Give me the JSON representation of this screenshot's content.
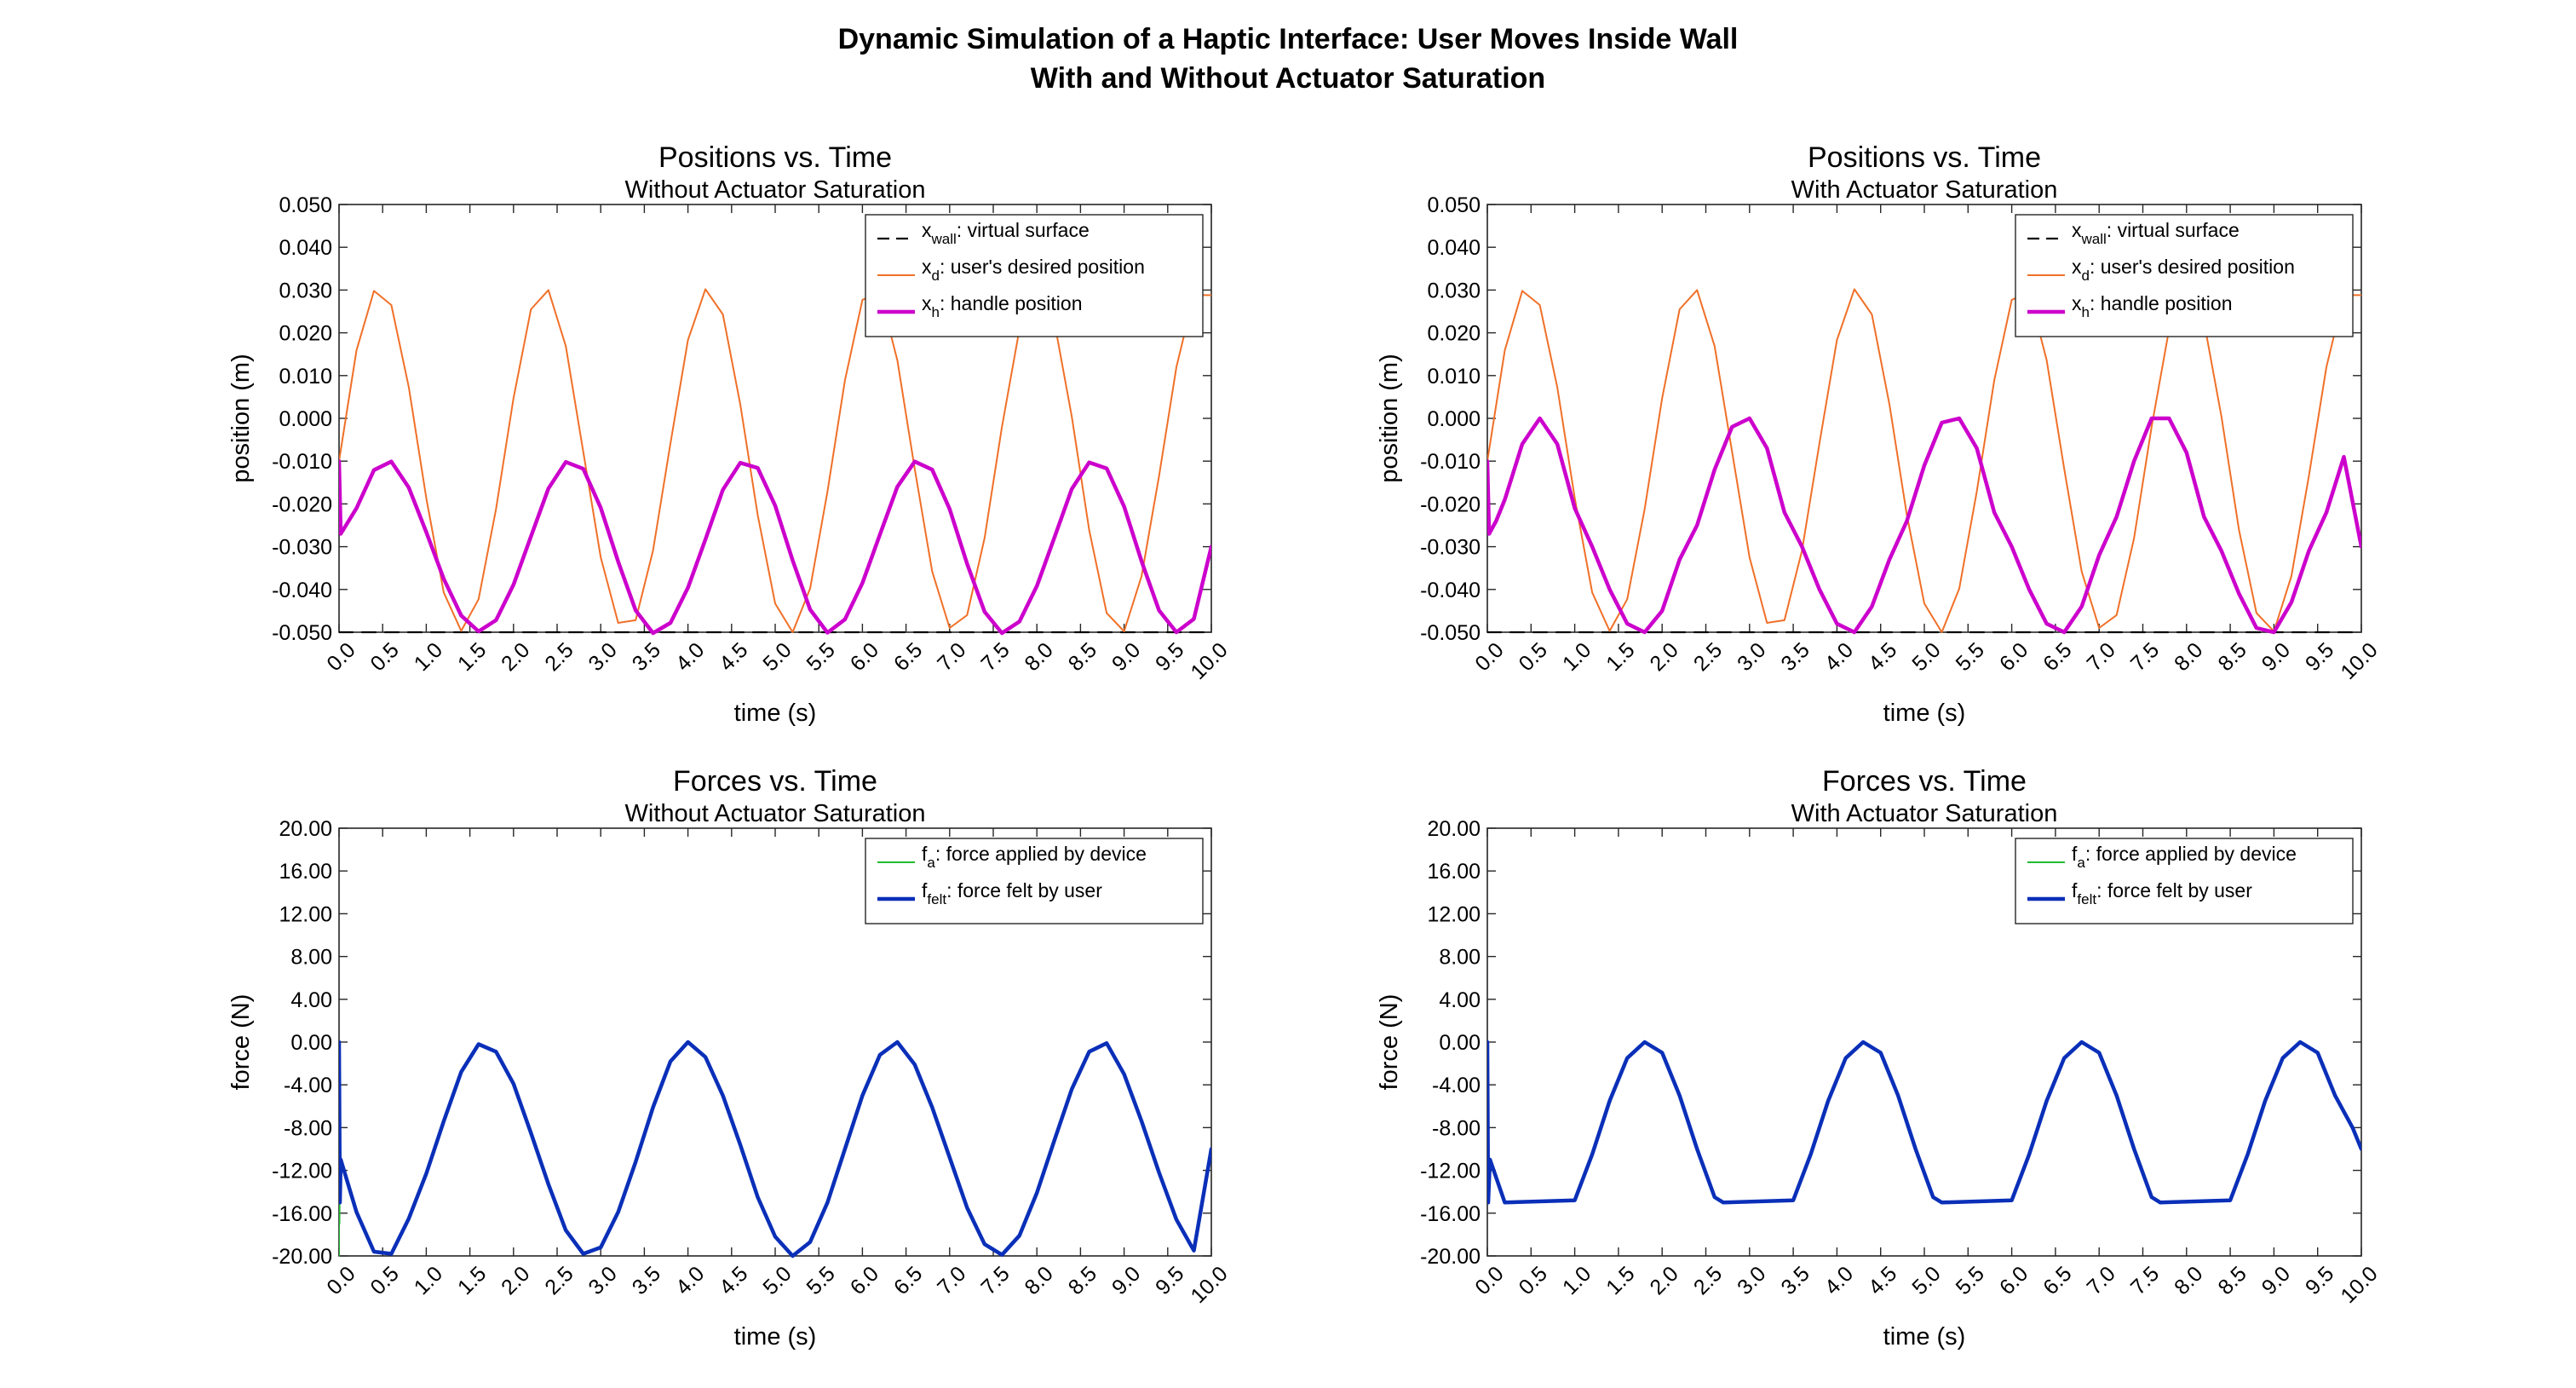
{
  "figure": {
    "suptitle_line1": "Dynamic Simulation of a Haptic Interface: User Moves Inside Wall",
    "suptitle_line2": "With and Without Actuator Saturation"
  },
  "chart_data": [
    {
      "type": "line",
      "title": "Positions vs. Time",
      "subtitle": "Without Actuator Saturation",
      "xlabel": "time (s)",
      "ylabel": "position (m)",
      "xlim": [
        0,
        10
      ],
      "ylim": [
        -0.05,
        0.05
      ],
      "x_ticks": [
        "0.0",
        "0.5",
        "1.0",
        "1.5",
        "2.0",
        "2.5",
        "3.0",
        "3.5",
        "4.0",
        "4.5",
        "5.0",
        "5.5",
        "6.0",
        "6.5",
        "7.0",
        "7.5",
        "8.0",
        "8.5",
        "9.0",
        "9.5",
        "10.0"
      ],
      "y_ticks": [
        "0.050",
        "0.040",
        "0.030",
        "0.020",
        "0.010",
        "0.000",
        "-0.010",
        "-0.020",
        "-0.030",
        "-0.040",
        "-0.050"
      ],
      "grid": false,
      "legend_position": "top-right",
      "series": [
        {
          "name": "x_wall: virtual surface",
          "legend_main": "x",
          "legend_sub": "wall",
          "legend_rest": ": virtual surface",
          "color": "#000000",
          "style": "dashed",
          "x": [
            0,
            10
          ],
          "values": [
            -0.05,
            -0.05
          ]
        },
        {
          "name": "x_d: user's desired position",
          "legend_main": "x",
          "legend_sub": "d",
          "legend_rest": ": user's desired position",
          "color": "#f07028",
          "style": "thin",
          "x": [
            0.0,
            0.2,
            0.4,
            0.6,
            0.8,
            1.0,
            1.2,
            1.4,
            1.6,
            1.8,
            2.0,
            2.2,
            2.4,
            2.6,
            2.8,
            3.0,
            3.2,
            3.4,
            3.6,
            3.8,
            4.0,
            4.2,
            4.4,
            4.6,
            4.8,
            5.0,
            5.2,
            5.4,
            5.6,
            5.8,
            6.0,
            6.2,
            6.4,
            6.6,
            6.8,
            7.0,
            7.2,
            7.4,
            7.6,
            7.8,
            8.0,
            8.2,
            8.4,
            8.6,
            8.8,
            9.0,
            9.2,
            9.4,
            9.6,
            9.8,
            10.0
          ],
          "values": [
            -0.01,
            0.0159,
            0.0298,
            0.0265,
            0.0073,
            -0.0186,
            -0.0407,
            -0.0497,
            -0.0423,
            -0.0212,
            0.0047,
            0.0255,
            0.03,
            0.0169,
            -0.0078,
            -0.0325,
            -0.0478,
            -0.0472,
            -0.0309,
            -0.0058,
            0.0183,
            0.0302,
            0.0243,
            0.0033,
            -0.0226,
            -0.0433,
            -0.05,
            -0.0398,
            -0.0171,
            0.0089,
            0.0277,
            0.0295,
            0.0136,
            -0.0118,
            -0.0358,
            -0.049,
            -0.046,
            -0.028,
            -0.002,
            0.0208,
            0.0301,
            0.0226,
            0.0004,
            -0.0261,
            -0.0455,
            -0.0498,
            -0.0369,
            -0.0135,
            0.012,
            0.0288,
            0.0288
          ]
        },
        {
          "name": "x_h: handle position",
          "legend_main": "x",
          "legend_sub": "h",
          "legend_rest": ": handle position",
          "color": "#cc00cc",
          "style": "thick",
          "x": [
            0.0,
            0.02,
            0.2,
            0.4,
            0.6,
            0.8,
            1.0,
            1.2,
            1.4,
            1.6,
            1.8,
            2.0,
            2.2,
            2.4,
            2.6,
            2.8,
            3.0,
            3.2,
            3.4,
            3.6,
            3.8,
            4.0,
            4.2,
            4.4,
            4.6,
            4.8,
            5.0,
            5.2,
            5.4,
            5.6,
            5.8,
            6.0,
            6.2,
            6.4,
            6.6,
            6.8,
            7.0,
            7.2,
            7.4,
            7.6,
            7.8,
            8.0,
            8.2,
            8.4,
            8.6,
            8.8,
            9.0,
            9.2,
            9.4,
            9.6,
            9.8,
            10.0
          ],
          "values": [
            -0.01,
            -0.027,
            -0.021,
            -0.0121,
            -0.0101,
            -0.0162,
            -0.0266,
            -0.0375,
            -0.0461,
            -0.0498,
            -0.0472,
            -0.0389,
            -0.0276,
            -0.0164,
            -0.0102,
            -0.0118,
            -0.0209,
            -0.0335,
            -0.0449,
            -0.0502,
            -0.0478,
            -0.0396,
            -0.0283,
            -0.0167,
            -0.0104,
            -0.0116,
            -0.0204,
            -0.0332,
            -0.0447,
            -0.0501,
            -0.047,
            -0.0385,
            -0.0272,
            -0.016,
            -0.0101,
            -0.012,
            -0.0212,
            -0.034,
            -0.0452,
            -0.0502,
            -0.0475,
            -0.0392,
            -0.0279,
            -0.0165,
            -0.0103,
            -0.0117,
            -0.0206,
            -0.0334,
            -0.0449,
            -0.05,
            -0.0469,
            -0.03
          ]
        }
      ]
    },
    {
      "type": "line",
      "title": "Positions vs. Time",
      "subtitle": "With Actuator Saturation",
      "xlabel": "time (s)",
      "ylabel": "position (m)",
      "xlim": [
        0,
        10
      ],
      "ylim": [
        -0.05,
        0.05
      ],
      "x_ticks": [
        "0.0",
        "0.5",
        "1.0",
        "1.5",
        "2.0",
        "2.5",
        "3.0",
        "3.5",
        "4.0",
        "4.5",
        "5.0",
        "5.5",
        "6.0",
        "6.5",
        "7.0",
        "7.5",
        "8.0",
        "8.5",
        "9.0",
        "9.5",
        "10.0"
      ],
      "y_ticks": [
        "0.050",
        "0.040",
        "0.030",
        "0.020",
        "0.010",
        "0.000",
        "-0.010",
        "-0.020",
        "-0.030",
        "-0.040",
        "-0.050"
      ],
      "grid": false,
      "legend_position": "top-right",
      "series": [
        {
          "name": "x_wall: virtual surface",
          "legend_main": "x",
          "legend_sub": "wall",
          "legend_rest": ": virtual surface",
          "color": "#000000",
          "style": "dashed",
          "x": [
            0,
            10
          ],
          "values": [
            -0.05,
            -0.05
          ]
        },
        {
          "name": "x_d: user's desired position",
          "legend_main": "x",
          "legend_sub": "d",
          "legend_rest": ": user's desired position",
          "color": "#f07028",
          "style": "thin",
          "x": [
            0.0,
            0.2,
            0.4,
            0.6,
            0.8,
            1.0,
            1.2,
            1.4,
            1.6,
            1.8,
            2.0,
            2.2,
            2.4,
            2.6,
            2.8,
            3.0,
            3.2,
            3.4,
            3.6,
            3.8,
            4.0,
            4.2,
            4.4,
            4.6,
            4.8,
            5.0,
            5.2,
            5.4,
            5.6,
            5.8,
            6.0,
            6.2,
            6.4,
            6.6,
            6.8,
            7.0,
            7.2,
            7.4,
            7.6,
            7.8,
            8.0,
            8.2,
            8.4,
            8.6,
            8.8,
            9.0,
            9.2,
            9.4,
            9.6,
            9.8,
            10.0
          ],
          "values": [
            -0.01,
            0.0159,
            0.0298,
            0.0265,
            0.0073,
            -0.0186,
            -0.0407,
            -0.0497,
            -0.0423,
            -0.0212,
            0.0047,
            0.0255,
            0.03,
            0.0169,
            -0.0078,
            -0.0325,
            -0.0478,
            -0.0472,
            -0.0309,
            -0.0058,
            0.0183,
            0.0302,
            0.0243,
            0.0033,
            -0.0226,
            -0.0433,
            -0.05,
            -0.0398,
            -0.0171,
            0.0089,
            0.0277,
            0.0295,
            0.0136,
            -0.0118,
            -0.0358,
            -0.049,
            -0.046,
            -0.028,
            -0.002,
            0.0208,
            0.0301,
            0.0226,
            0.0004,
            -0.0261,
            -0.0455,
            -0.0498,
            -0.0369,
            -0.0135,
            0.012,
            0.0288,
            0.0288
          ]
        },
        {
          "name": "x_h: handle position",
          "legend_main": "x",
          "legend_sub": "h",
          "legend_rest": ": handle position",
          "color": "#cc00cc",
          "style": "thick",
          "x": [
            0.0,
            0.02,
            0.1,
            0.2,
            0.4,
            0.6,
            0.8,
            1.0,
            1.2,
            1.4,
            1.6,
            1.8,
            2.0,
            2.2,
            2.4,
            2.6,
            2.8,
            3.0,
            3.2,
            3.4,
            3.6,
            3.8,
            4.0,
            4.2,
            4.4,
            4.6,
            4.8,
            5.0,
            5.2,
            5.4,
            5.6,
            5.8,
            6.0,
            6.2,
            6.4,
            6.6,
            6.8,
            7.0,
            7.2,
            7.4,
            7.6,
            7.8,
            8.0,
            8.2,
            8.4,
            8.6,
            8.8,
            9.0,
            9.2,
            9.4,
            9.6,
            9.8,
            10.0
          ],
          "values": [
            -0.01,
            -0.027,
            -0.024,
            -0.019,
            -0.006,
            0.0,
            -0.006,
            -0.021,
            -0.03,
            -0.04,
            -0.048,
            -0.05,
            -0.045,
            -0.033,
            -0.025,
            -0.012,
            -0.002,
            0.0,
            -0.007,
            -0.022,
            -0.03,
            -0.04,
            -0.048,
            -0.05,
            -0.044,
            -0.033,
            -0.024,
            -0.011,
            -0.001,
            0.0,
            -0.007,
            -0.022,
            -0.03,
            -0.04,
            -0.048,
            -0.05,
            -0.044,
            -0.032,
            -0.023,
            -0.01,
            0.0,
            0.0,
            -0.008,
            -0.023,
            -0.031,
            -0.041,
            -0.049,
            -0.05,
            -0.043,
            -0.031,
            -0.022,
            -0.009,
            -0.03
          ]
        }
      ]
    },
    {
      "type": "line",
      "title": "Forces vs. Time",
      "subtitle": "Without Actuator Saturation",
      "xlabel": "time (s)",
      "ylabel": "force (N)",
      "xlim": [
        0,
        10
      ],
      "ylim": [
        -20,
        20
      ],
      "x_ticks": [
        "0.0",
        "0.5",
        "1.0",
        "1.5",
        "2.0",
        "2.5",
        "3.0",
        "3.5",
        "4.0",
        "4.5",
        "5.0",
        "5.5",
        "6.0",
        "6.5",
        "7.0",
        "7.5",
        "8.0",
        "8.5",
        "9.0",
        "9.5",
        "10.0"
      ],
      "y_ticks": [
        "20.00",
        "16.00",
        "12.00",
        "8.00",
        "4.00",
        "0.00",
        "-4.00",
        "-8.00",
        "-12.00",
        "-16.00",
        "-20.00"
      ],
      "grid": false,
      "legend_position": "top-right",
      "series": [
        {
          "name": "f_a: force applied by device",
          "legend_main": "f",
          "legend_sub": "a",
          "legend_rest": ": force applied by device",
          "color": "#22bb33",
          "style": "thin",
          "x": [
            0.0,
            0.0,
            0.005,
            0.01
          ],
          "values": [
            -20,
            0,
            -17,
            -11
          ]
        },
        {
          "name": "f_felt: force felt by user",
          "legend_main": "f",
          "legend_sub": "felt",
          "legend_rest": ": force felt by user",
          "color": "#0a2fb8",
          "style": "thick",
          "x": [
            0.0,
            0.01,
            0.02,
            0.2,
            0.4,
            0.6,
            0.8,
            1.0,
            1.2,
            1.4,
            1.6,
            1.8,
            2.0,
            2.2,
            2.4,
            2.6,
            2.8,
            3.0,
            3.2,
            3.4,
            3.6,
            3.8,
            4.0,
            4.2,
            4.4,
            4.6,
            4.8,
            5.0,
            5.2,
            5.4,
            5.6,
            5.8,
            6.0,
            6.2,
            6.4,
            6.6,
            6.8,
            7.0,
            7.2,
            7.4,
            7.6,
            7.8,
            8.0,
            8.2,
            8.4,
            8.6,
            8.8,
            9.0,
            9.2,
            9.4,
            9.6,
            9.8,
            10.0
          ],
          "values": [
            0,
            -15,
            -11,
            -15.9,
            -19.6,
            -19.8,
            -16.5,
            -12.3,
            -7.4,
            -2.8,
            -0.2,
            -0.9,
            -3.9,
            -8.5,
            -13.3,
            -17.6,
            -19.8,
            -19.2,
            -15.9,
            -11.2,
            -6.1,
            -1.8,
            0.0,
            -1.4,
            -5.0,
            -9.6,
            -14.5,
            -18.2,
            -20.0,
            -18.7,
            -15.0,
            -10.0,
            -5.0,
            -1.2,
            0.0,
            -2.1,
            -6.1,
            -10.8,
            -15.5,
            -18.9,
            -19.9,
            -18.1,
            -14.1,
            -9.2,
            -4.4,
            -0.9,
            -0.1,
            -3.0,
            -7.4,
            -12.2,
            -16.6,
            -19.5,
            -10
          ]
        }
      ]
    },
    {
      "type": "line",
      "title": "Forces vs. Time",
      "subtitle": "With Actuator Saturation",
      "xlabel": "time (s)",
      "ylabel": "force (N)",
      "xlim": [
        0,
        10
      ],
      "ylim": [
        -20,
        20
      ],
      "x_ticks": [
        "0.0",
        "0.5",
        "1.0",
        "1.5",
        "2.0",
        "2.5",
        "3.0",
        "3.5",
        "4.0",
        "4.5",
        "5.0",
        "5.5",
        "6.0",
        "6.5",
        "7.0",
        "7.5",
        "8.0",
        "8.5",
        "9.0",
        "9.5",
        "10.0"
      ],
      "y_ticks": [
        "20.00",
        "16.00",
        "12.00",
        "8.00",
        "4.00",
        "0.00",
        "-4.00",
        "-8.00",
        "-12.00",
        "-16.00",
        "-20.00"
      ],
      "grid": false,
      "legend_position": "top-right",
      "series": [
        {
          "name": "f_a: force applied by device",
          "legend_main": "f",
          "legend_sub": "a",
          "legend_rest": ": force applied by device",
          "color": "#22bb33",
          "style": "thin",
          "x": [
            0.0,
            0.0,
            0.005,
            0.01
          ],
          "values": [
            -15,
            0,
            -13,
            -11
          ]
        },
        {
          "name": "f_felt: force felt by user",
          "legend_main": "f",
          "legend_sub": "felt",
          "legend_rest": ": force felt by user",
          "color": "#0a2fb8",
          "style": "thick",
          "x": [
            0.0,
            0.01,
            0.03,
            0.2,
            1.0,
            1.2,
            1.4,
            1.6,
            1.8,
            2.0,
            2.2,
            2.4,
            2.6,
            2.7,
            3.5,
            3.7,
            3.9,
            4.1,
            4.3,
            4.5,
            4.7,
            4.9,
            5.1,
            5.2,
            6.0,
            6.2,
            6.4,
            6.6,
            6.8,
            7.0,
            7.2,
            7.4,
            7.6,
            7.7,
            8.5,
            8.7,
            8.9,
            9.1,
            9.3,
            9.5,
            9.7,
            9.9,
            10.0
          ],
          "values": [
            0,
            -15,
            -11,
            -15,
            -14.8,
            -10.5,
            -5.5,
            -1.5,
            0.0,
            -1.0,
            -5.0,
            -10.0,
            -14.5,
            -15,
            -14.8,
            -10.5,
            -5.5,
            -1.5,
            0.0,
            -1.0,
            -5.0,
            -10.0,
            -14.5,
            -15,
            -14.8,
            -10.5,
            -5.5,
            -1.5,
            0.0,
            -1.0,
            -5.0,
            -10.0,
            -14.5,
            -15,
            -14.8,
            -10.5,
            -5.5,
            -1.5,
            0.0,
            -1.0,
            -5.0,
            -8.0,
            -10
          ]
        }
      ]
    }
  ]
}
